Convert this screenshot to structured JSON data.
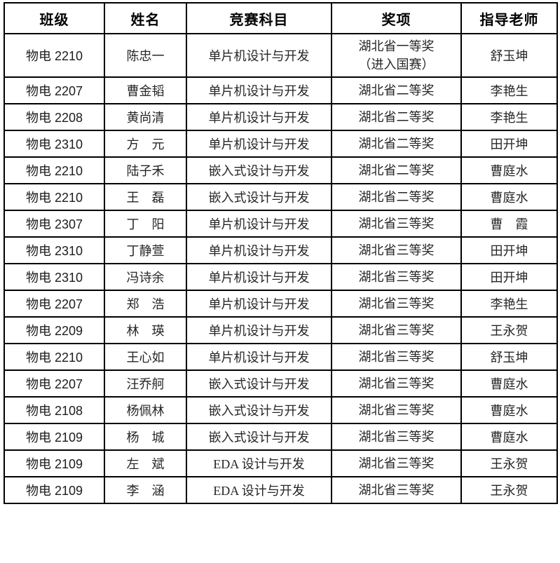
{
  "page": {
    "background": "#ffffff",
    "border_color": "#000000",
    "header_text_color": "#000000",
    "body_text_color": "#262626"
  },
  "table": {
    "headers": [
      "班级",
      "姓名",
      "竞赛科目",
      "奖项",
      "指导老师"
    ],
    "column_keys": [
      "class",
      "name",
      "subject",
      "award",
      "teacher"
    ],
    "rows": [
      [
        "物电 2210",
        "陈忠一",
        "单片机设计与开发",
        "湖北省一等奖\n（进入国赛）",
        "舒玉坤"
      ],
      [
        "物电 2207",
        "曹金韬",
        "单片机设计与开发",
        "湖北省二等奖",
        "李艳生"
      ],
      [
        "物电 2208",
        "黄尚清",
        "单片机设计与开发",
        "湖北省二等奖",
        "李艳生"
      ],
      [
        "物电 2310",
        "方　元",
        "单片机设计与开发",
        "湖北省二等奖",
        "田开坤"
      ],
      [
        "物电 2210",
        "陆子禾",
        "嵌入式设计与开发",
        "湖北省二等奖",
        "曹庭水"
      ],
      [
        "物电 2210",
        "王　磊",
        "嵌入式设计与开发",
        "湖北省二等奖",
        "曹庭水"
      ],
      [
        "物电 2307",
        "丁　阳",
        "单片机设计与开发",
        "湖北省三等奖",
        "曹　霞"
      ],
      [
        "物电 2310",
        "丁静萱",
        "单片机设计与开发",
        "湖北省三等奖",
        "田开坤"
      ],
      [
        "物电 2310",
        "冯诗余",
        "单片机设计与开发",
        "湖北省三等奖",
        "田开坤"
      ],
      [
        "物电 2207",
        "郑　浩",
        "单片机设计与开发",
        "湖北省三等奖",
        "李艳生"
      ],
      [
        "物电 2209",
        "林　瑛",
        "单片机设计与开发",
        "湖北省三等奖",
        "王永贺"
      ],
      [
        "物电 2210",
        "王心如",
        "单片机设计与开发",
        "湖北省三等奖",
        "舒玉坤"
      ],
      [
        "物电 2207",
        "汪乔舸",
        "嵌入式设计与开发",
        "湖北省三等奖",
        "曹庭水"
      ],
      [
        "物电 2108",
        "杨佩林",
        "嵌入式设计与开发",
        "湖北省三等奖",
        "曹庭水"
      ],
      [
        "物电 2109",
        "杨　城",
        "嵌入式设计与开发",
        "湖北省三等奖",
        "曹庭水"
      ],
      [
        "物电 2109",
        "左　斌",
        "EDA 设计与开发",
        "湖北省三等奖",
        "王永贺"
      ],
      [
        "物电 2109",
        "李　涵",
        "EDA 设计与开发",
        "湖北省三等奖",
        "王永贺"
      ]
    ]
  }
}
